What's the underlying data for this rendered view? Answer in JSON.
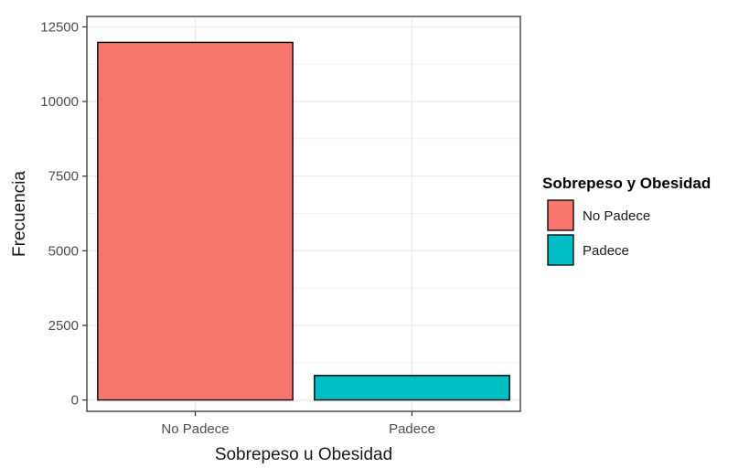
{
  "chart_data": {
    "type": "bar",
    "categories": [
      "No Padece",
      "Padece"
    ],
    "values": [
      11980,
      820
    ],
    "colors": [
      "#F8766D",
      "#00BFC4"
    ],
    "xlabel": "Sobrepeso u Obesidad",
    "ylabel": "Frecuencia",
    "ylim": [
      0,
      12500
    ],
    "yticks": [
      0,
      2500,
      5000,
      7500,
      10000,
      12500
    ],
    "ytick_labels": [
      "0",
      "2500",
      "5000",
      "7500",
      "10000",
      "12500"
    ],
    "grid": true,
    "legend": {
      "title": "Sobrepeso y Obesidad",
      "placement": "right",
      "entries": [
        "No Padece",
        "Padece"
      ]
    }
  }
}
